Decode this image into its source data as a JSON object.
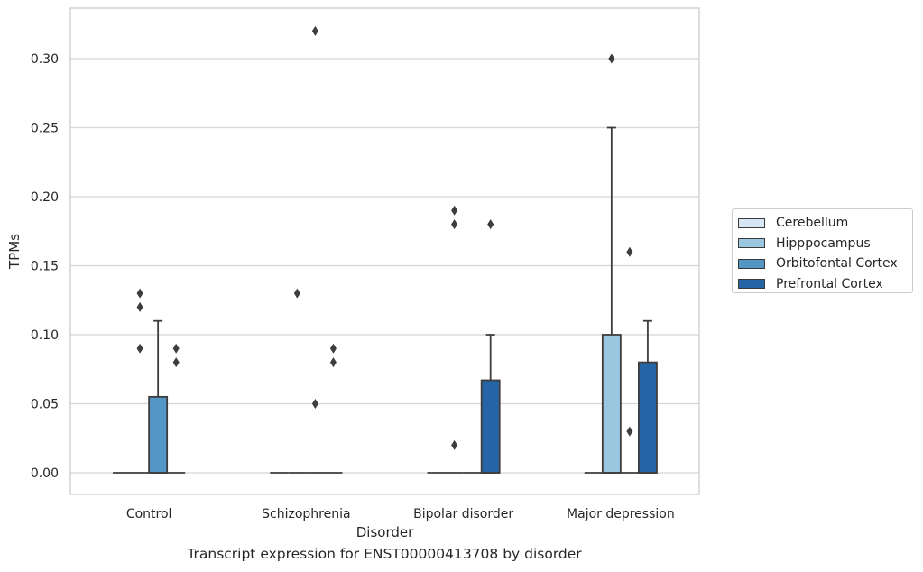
{
  "chart_data": {
    "type": "boxplot",
    "title": "",
    "caption": "Transcript expression for ENST00000413708 by disorder",
    "xlabel": "Disorder",
    "ylabel": "TPMs",
    "ylim": [
      -0.016,
      0.336
    ],
    "yticks": [
      0.0,
      0.05,
      0.1,
      0.15,
      0.2,
      0.25,
      0.3
    ],
    "ytick_labels": [
      "0.00",
      "0.05",
      "0.10",
      "0.15",
      "0.20",
      "0.25",
      "0.30"
    ],
    "grid": "horizontal",
    "legend_position": "right",
    "categories": [
      "Control",
      "Schizophrenia",
      "Bipolar disorder",
      "Major depression"
    ],
    "series": [
      {
        "name": "Cerebellum",
        "color": "#d6e6f4",
        "boxes": [
          {
            "q1": 0,
            "median": 0,
            "q3": 0,
            "whisker_low": 0,
            "whisker_high": 0,
            "outliers": []
          },
          {
            "q1": 0,
            "median": 0,
            "q3": 0,
            "whisker_low": 0,
            "whisker_high": 0,
            "outliers": []
          },
          {
            "q1": 0,
            "median": 0,
            "q3": 0,
            "whisker_low": 0,
            "whisker_high": 0,
            "outliers": []
          },
          {
            "q1": 0,
            "median": 0,
            "q3": 0,
            "whisker_low": 0,
            "whisker_high": 0,
            "outliers": []
          }
        ]
      },
      {
        "name": "Hipppocampus",
        "color": "#9ac6df",
        "boxes": [
          {
            "q1": 0,
            "median": 0,
            "q3": 0,
            "whisker_low": 0,
            "whisker_high": 0,
            "outliers": [
              0.09,
              0.12,
              0.13
            ]
          },
          {
            "q1": 0,
            "median": 0,
            "q3": 0,
            "whisker_low": 0,
            "whisker_high": 0,
            "outliers": [
              0.13
            ]
          },
          {
            "q1": 0,
            "median": 0,
            "q3": 0,
            "whisker_low": 0,
            "whisker_high": 0,
            "outliers": [
              0.02,
              0.18,
              0.19
            ]
          },
          {
            "q1": 0,
            "median": 0,
            "q3": 0.1,
            "whisker_low": 0,
            "whisker_high": 0.25,
            "outliers": [
              0.3
            ]
          }
        ]
      },
      {
        "name": "Orbitofontal Cortex",
        "color": "#5497c6",
        "boxes": [
          {
            "q1": 0,
            "median": 0,
            "q3": 0.055,
            "whisker_low": 0,
            "whisker_high": 0.11,
            "outliers": []
          },
          {
            "q1": 0,
            "median": 0,
            "q3": 0,
            "whisker_low": 0,
            "whisker_high": 0,
            "outliers": [
              0.05,
              0.32
            ]
          },
          {
            "q1": 0,
            "median": 0,
            "q3": 0,
            "whisker_low": 0,
            "whisker_high": 0,
            "outliers": []
          },
          {
            "q1": 0,
            "median": 0,
            "q3": 0,
            "whisker_low": 0,
            "whisker_high": 0,
            "outliers": [
              0.03,
              0.16
            ]
          }
        ]
      },
      {
        "name": "Prefrontal Cortex",
        "color": "#2565a5",
        "boxes": [
          {
            "q1": 0,
            "median": 0,
            "q3": 0,
            "whisker_low": 0,
            "whisker_high": 0,
            "outliers": [
              0.08,
              0.09
            ]
          },
          {
            "q1": 0,
            "median": 0,
            "q3": 0,
            "whisker_low": 0,
            "whisker_high": 0,
            "outliers": [
              0.08,
              0.09
            ]
          },
          {
            "q1": 0,
            "median": 0,
            "q3": 0.067,
            "whisker_low": 0,
            "whisker_high": 0.1,
            "outliers": [
              0.18
            ]
          },
          {
            "q1": 0,
            "median": 0,
            "q3": 0.08,
            "whisker_low": 0,
            "whisker_high": 0.11,
            "outliers": []
          }
        ]
      }
    ]
  }
}
